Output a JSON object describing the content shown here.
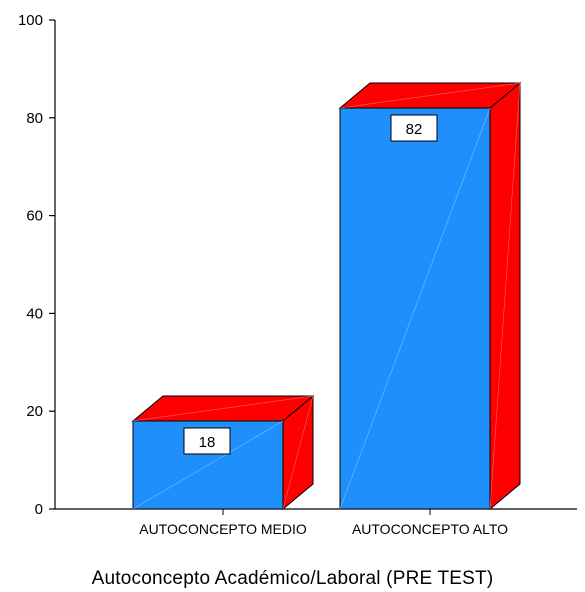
{
  "chart_data": {
    "type": "bar",
    "categories": [
      "AUTOCONCEPTO MEDIO",
      "AUTOCONCEPTO ALTO"
    ],
    "values": [
      18,
      82
    ],
    "data_labels": [
      "18",
      "82"
    ],
    "xlabel": "Autoconcepto Académico/Laboral (PRE TEST)",
    "ylabel": "",
    "ylim": [
      0,
      100
    ],
    "yticks": [
      0,
      20,
      40,
      60,
      80,
      100
    ],
    "grid": false,
    "legend": "none",
    "style": "3d",
    "colors": {
      "front": "#1f8ffb",
      "top": "#ff0000",
      "side": "#ff0000",
      "outline": "#000000"
    }
  }
}
